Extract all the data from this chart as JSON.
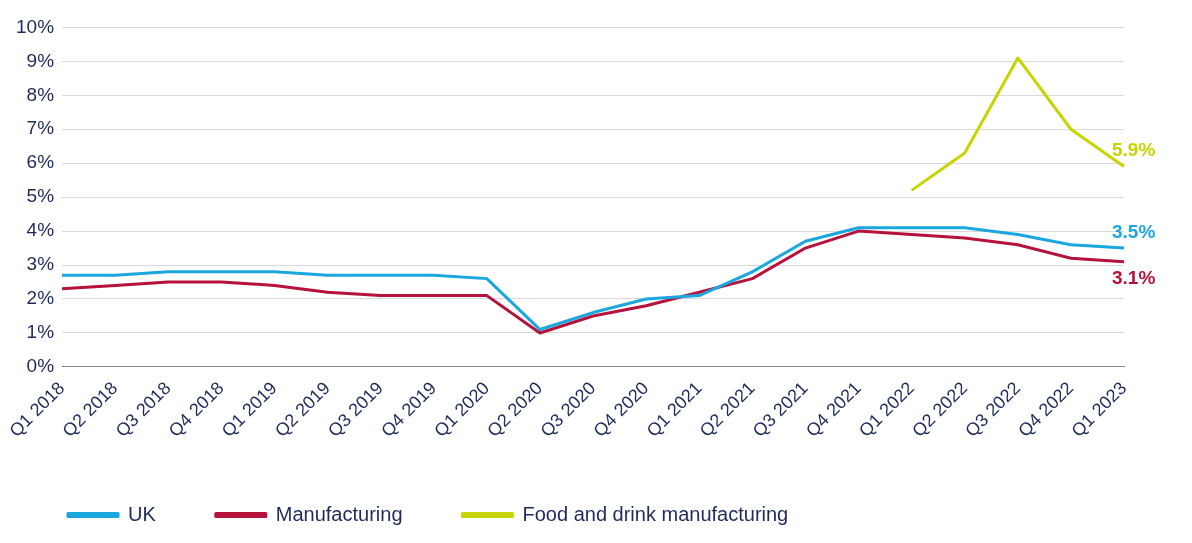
{
  "chart_data": {
    "type": "line",
    "categories": [
      "Q1 2018",
      "Q2 2018",
      "Q3 2018",
      "Q4 2018",
      "Q1 2019",
      "Q2 2019",
      "Q3 2019",
      "Q4 2019",
      "Q1 2020",
      "Q2 2020",
      "Q3 2020",
      "Q4 2020",
      "Q1 2021",
      "Q2 2021",
      "Q3 2021",
      "Q4 2021",
      "Q1 2022",
      "Q2 2022",
      "Q3 2022",
      "Q4 2022",
      "Q1 2023"
    ],
    "series": [
      {
        "name": "UK",
        "color": "#1aa7e0",
        "values": [
          2.7,
          2.7,
          2.8,
          2.8,
          2.8,
          2.7,
          2.7,
          2.7,
          2.6,
          1.1,
          1.6,
          2.0,
          2.1,
          2.8,
          3.7,
          4.1,
          4.1,
          4.1,
          3.9,
          3.6,
          3.5
        ],
        "value_labels": [
          null,
          null,
          null,
          null,
          null,
          null,
          null,
          null,
          null,
          null,
          null,
          null,
          null,
          null,
          null,
          null,
          null,
          null,
          null,
          null,
          "3.5%"
        ]
      },
      {
        "name": "Manufacturing",
        "color": "#b5123c",
        "values": [
          2.3,
          2.4,
          2.5,
          2.5,
          2.4,
          2.2,
          2.1,
          2.1,
          2.1,
          1.0,
          1.5,
          1.8,
          2.2,
          2.6,
          3.5,
          4.0,
          3.9,
          3.8,
          3.6,
          3.2,
          3.1
        ],
        "value_labels": [
          null,
          null,
          null,
          null,
          null,
          null,
          null,
          null,
          null,
          null,
          null,
          null,
          null,
          null,
          null,
          null,
          null,
          null,
          null,
          null,
          "3.1%"
        ]
      },
      {
        "name": "Food and drink manufacturing",
        "color": "#c8d400",
        "values": [
          null,
          null,
          null,
          null,
          null,
          null,
          null,
          null,
          null,
          null,
          null,
          null,
          null,
          null,
          null,
          null,
          5.2,
          6.3,
          9.1,
          7.0,
          5.9
        ],
        "value_labels": [
          null,
          null,
          null,
          null,
          null,
          null,
          null,
          null,
          null,
          null,
          null,
          null,
          null,
          null,
          null,
          null,
          null,
          null,
          null,
          null,
          "5.9%"
        ]
      }
    ],
    "ylim": [
      0,
      10
    ],
    "yticks": [
      {
        "value": 0,
        "label": "0%"
      },
      {
        "value": 1,
        "label": "1%"
      },
      {
        "value": 2,
        "label": "2%"
      },
      {
        "value": 3,
        "label": "3%"
      },
      {
        "value": 4,
        "label": "4%"
      },
      {
        "value": 5,
        "label": "5%"
      },
      {
        "value": 6,
        "label": "6%"
      },
      {
        "value": 7,
        "label": "7%"
      },
      {
        "value": 8,
        "label": "8%"
      },
      {
        "value": 9,
        "label": "9%"
      },
      {
        "value": 10,
        "label": "10%"
      }
    ],
    "grid": "y",
    "legend": "bottom",
    "marker": "none",
    "line_style": "solid"
  }
}
